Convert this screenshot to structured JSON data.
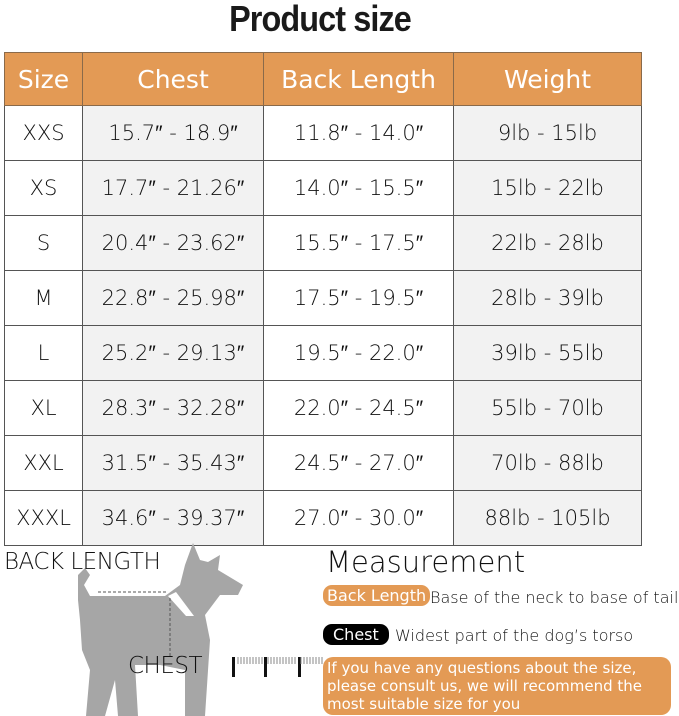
{
  "title": "Product size",
  "table": {
    "headers": [
      "Size",
      "Chest",
      "Back Length",
      "Weight"
    ],
    "rows": [
      [
        "XXS",
        "15.7″ - 18.9″",
        "11.8″ - 14.0″",
        "9lb - 15lb"
      ],
      [
        "XS",
        "17.7″ - 21.26″",
        "14.0″ - 15.5″",
        "15lb - 22lb"
      ],
      [
        "S",
        "20.4″ - 23.62″",
        "15.5″ - 17.5″",
        "22lb - 28lb"
      ],
      [
        "M",
        "22.8″ - 25.98″",
        "17.5″ - 19.5″",
        "28lb - 39lb"
      ],
      [
        "L",
        "25.2″ - 29.13″",
        "19.5″ - 22.0″",
        "39lb - 55lb"
      ],
      [
        "XL",
        "28.3″ - 32.28″",
        "22.0″ - 24.5″",
        "55lb - 70lb"
      ],
      [
        "XXL",
        "31.5″ - 35.43″",
        "24.5″ - 27.0″",
        "70lb - 88lb"
      ],
      [
        "XXXL",
        "34.6″ - 39.37″",
        "27.0″ - 30.0″",
        "88lb - 105lb"
      ]
    ]
  },
  "diagram": {
    "back_length_label": "BACK LENGTH",
    "chest_label": "CHEST"
  },
  "measurement": {
    "title": "Measurement",
    "back_length_tag": "Back Length",
    "back_length_desc": "Base of the neck to base of tail",
    "chest_tag": "Chest",
    "chest_desc": "Widest part of the dog’s torso",
    "note": "If you have any questions about the size, please consult us, we will recommend the most suitable size for you"
  },
  "colors": {
    "accent": "#e39a55",
    "dog": "#a6a6a6"
  }
}
